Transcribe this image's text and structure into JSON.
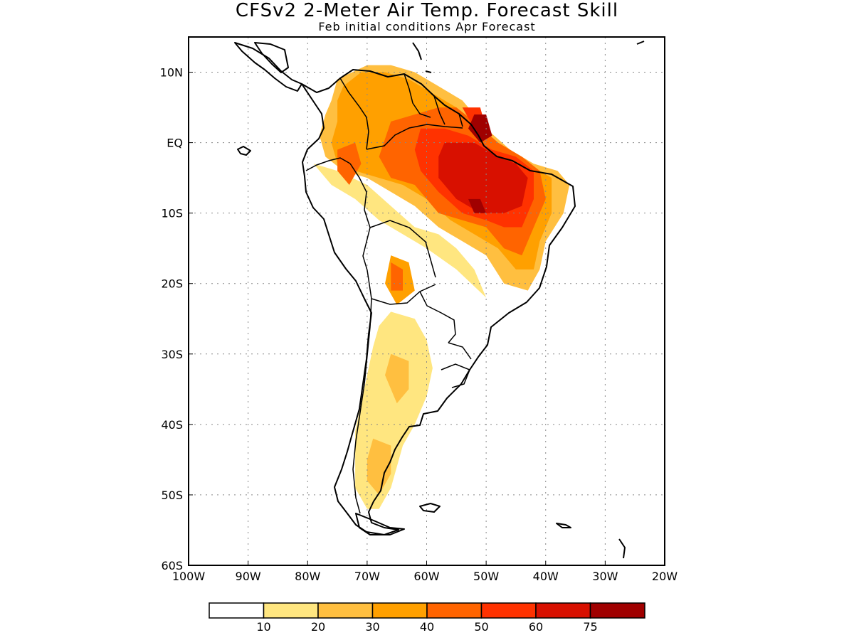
{
  "title": "CFSv2 2-Meter Air Temp. Forecast Skill",
  "subtitle": "Feb initial conditions  Apr Forecast",
  "map": {
    "lon_range": [
      -100,
      -20
    ],
    "lat_range": [
      -60,
      15
    ],
    "grid": true,
    "lon_ticks": [
      {
        "lon": -100,
        "label": "100W"
      },
      {
        "lon": -90,
        "label": "90W"
      },
      {
        "lon": -80,
        "label": "80W"
      },
      {
        "lon": -70,
        "label": "70W"
      },
      {
        "lon": -60,
        "label": "60W"
      },
      {
        "lon": -50,
        "label": "50W"
      },
      {
        "lon": -40,
        "label": "40W"
      },
      {
        "lon": -30,
        "label": "30W"
      },
      {
        "lon": -20,
        "label": "20W"
      }
    ],
    "lat_ticks": [
      {
        "lat": 10,
        "label": "10N"
      },
      {
        "lat": 0,
        "label": "EQ"
      },
      {
        "lat": -10,
        "label": "10S"
      },
      {
        "lat": -20,
        "label": "20S"
      },
      {
        "lat": -30,
        "label": "30S"
      },
      {
        "lat": -40,
        "label": "40S"
      },
      {
        "lat": -50,
        "label": "50S"
      },
      {
        "lat": -60,
        "label": "60S"
      }
    ]
  },
  "colorbar": {
    "bins": [
      {
        "color": "#ffffff"
      },
      {
        "color": "#ffe680"
      },
      {
        "color": "#ffbf40"
      },
      {
        "color": "#ffa000"
      },
      {
        "color": "#ff6400"
      },
      {
        "color": "#ff3200"
      },
      {
        "color": "#d81000"
      },
      {
        "color": "#a00000"
      }
    ],
    "labels": [
      "10",
      "20",
      "30",
      "40",
      "50",
      "60",
      "75"
    ]
  },
  "skill_regions": [
    {
      "level": 1,
      "points": [
        [
          -79,
          -3
        ],
        [
          -75,
          -4
        ],
        [
          -70,
          -6
        ],
        [
          -66,
          -9
        ],
        [
          -62,
          -12
        ],
        [
          -58,
          -13
        ],
        [
          -55,
          -15
        ],
        [
          -52,
          -18
        ],
        [
          -50,
          -22
        ],
        [
          -55,
          -18
        ],
        [
          -60,
          -15
        ],
        [
          -64,
          -13
        ],
        [
          -68,
          -11
        ],
        [
          -72,
          -8
        ],
        [
          -76,
          -6
        ]
      ]
    },
    {
      "level": 1,
      "points": [
        [
          -66,
          -24
        ],
        [
          -62,
          -25
        ],
        [
          -60,
          -28
        ],
        [
          -59,
          -32
        ],
        [
          -60,
          -36
        ],
        [
          -62,
          -40
        ],
        [
          -64,
          -43
        ],
        [
          -65,
          -46
        ],
        [
          -66,
          -49
        ],
        [
          -68,
          -52
        ],
        [
          -70,
          -52
        ],
        [
          -72,
          -49
        ],
        [
          -72,
          -45
        ],
        [
          -72,
          -41
        ],
        [
          -71,
          -37
        ],
        [
          -70,
          -33
        ],
        [
          -69,
          -29
        ],
        [
          -68,
          -26
        ]
      ]
    },
    {
      "level": 2,
      "points": [
        [
          -75,
          9
        ],
        [
          -70,
          11
        ],
        [
          -66,
          11
        ],
        [
          -62,
          10
        ],
        [
          -58,
          8
        ],
        [
          -54,
          6
        ],
        [
          -50,
          2
        ],
        [
          -46,
          -1
        ],
        [
          -42,
          -3
        ],
        [
          -38,
          -4
        ],
        [
          -36,
          -6
        ],
        [
          -37,
          -10
        ],
        [
          -40,
          -14
        ],
        [
          -41,
          -18
        ],
        [
          -43,
          -21
        ],
        [
          -47,
          -20
        ],
        [
          -50,
          -16
        ],
        [
          -54,
          -14
        ],
        [
          -58,
          -12
        ],
        [
          -62,
          -9
        ],
        [
          -66,
          -7
        ],
        [
          -70,
          -5
        ],
        [
          -74,
          -4
        ],
        [
          -77,
          -2
        ],
        [
          -78,
          1
        ],
        [
          -77,
          4
        ],
        [
          -76,
          6
        ]
      ]
    },
    {
      "level": 2,
      "points": [
        [
          -66,
          -30
        ],
        [
          -63,
          -31
        ],
        [
          -63,
          -35
        ],
        [
          -65,
          -37
        ],
        [
          -67,
          -33
        ]
      ]
    },
    {
      "level": 2,
      "points": [
        [
          -69,
          -42
        ],
        [
          -66,
          -43
        ],
        [
          -66,
          -47
        ],
        [
          -68,
          -50
        ],
        [
          -70,
          -48
        ],
        [
          -70,
          -45
        ]
      ]
    },
    {
      "level": 3,
      "points": [
        [
          -74,
          8
        ],
        [
          -71,
          10
        ],
        [
          -67,
          10
        ],
        [
          -63,
          9
        ],
        [
          -59,
          7
        ],
        [
          -55,
          5
        ],
        [
          -51,
          2
        ],
        [
          -47,
          -1
        ],
        [
          -43,
          -3
        ],
        [
          -39,
          -5
        ],
        [
          -39,
          -10
        ],
        [
          -41,
          -14
        ],
        [
          -42,
          -18
        ],
        [
          -45,
          -18
        ],
        [
          -48,
          -15
        ],
        [
          -52,
          -13
        ],
        [
          -56,
          -11
        ],
        [
          -60,
          -8
        ],
        [
          -64,
          -6
        ],
        [
          -68,
          -5
        ],
        [
          -72,
          -4
        ],
        [
          -75,
          -3
        ],
        [
          -76,
          0
        ],
        [
          -75,
          3
        ],
        [
          -75,
          6
        ]
      ]
    },
    {
      "level": 3,
      "points": [
        [
          -66,
          -16
        ],
        [
          -63,
          -17
        ],
        [
          -62,
          -21
        ],
        [
          -65,
          -23
        ],
        [
          -67,
          -20
        ]
      ]
    },
    {
      "level": 4,
      "points": [
        [
          -66,
          3
        ],
        [
          -62,
          4
        ],
        [
          -58,
          5
        ],
        [
          -55,
          5
        ],
        [
          -52,
          3
        ],
        [
          -48,
          0
        ],
        [
          -44,
          -2
        ],
        [
          -41,
          -4
        ],
        [
          -40,
          -8
        ],
        [
          -42,
          -12
        ],
        [
          -44,
          -16
        ],
        [
          -47,
          -15
        ],
        [
          -50,
          -12
        ],
        [
          -54,
          -11
        ],
        [
          -58,
          -10
        ],
        [
          -62,
          -6
        ],
        [
          -66,
          -5
        ],
        [
          -68,
          -2
        ]
      ]
    },
    {
      "level": 4,
      "points": [
        [
          -75,
          -1
        ],
        [
          -72,
          0
        ],
        [
          -71,
          -3
        ],
        [
          -73,
          -6
        ],
        [
          -75,
          -4
        ]
      ]
    },
    {
      "level": 4,
      "points": [
        [
          -66,
          -17
        ],
        [
          -64,
          -18
        ],
        [
          -64,
          -21
        ],
        [
          -66,
          -21
        ]
      ]
    },
    {
      "level": 5,
      "points": [
        [
          -61,
          2
        ],
        [
          -57,
          2
        ],
        [
          -53,
          1
        ],
        [
          -49,
          -1
        ],
        [
          -45,
          -2
        ],
        [
          -42,
          -4
        ],
        [
          -42,
          -8
        ],
        [
          -44,
          -12
        ],
        [
          -47,
          -12
        ],
        [
          -50,
          -11
        ],
        [
          -54,
          -10
        ],
        [
          -58,
          -7
        ],
        [
          -61,
          -4
        ],
        [
          -62,
          -1
        ]
      ]
    },
    {
      "level": 5,
      "points": [
        [
          -54,
          5
        ],
        [
          -51,
          5
        ],
        [
          -50,
          2
        ],
        [
          -52,
          2
        ]
      ]
    },
    {
      "level": 6,
      "points": [
        [
          -57,
          0
        ],
        [
          -52,
          0
        ],
        [
          -48,
          -2
        ],
        [
          -45,
          -3
        ],
        [
          -43,
          -5
        ],
        [
          -44,
          -9
        ],
        [
          -47,
          -10
        ],
        [
          -51,
          -10
        ],
        [
          -55,
          -8
        ],
        [
          -58,
          -5
        ],
        [
          -58,
          -2
        ]
      ]
    },
    {
      "level": 7,
      "points": [
        [
          -52,
          4
        ],
        [
          -50,
          4
        ],
        [
          -49,
          1
        ],
        [
          -51,
          0
        ],
        [
          -53,
          2
        ]
      ]
    },
    {
      "level": 7,
      "points": [
        [
          -53,
          -8
        ],
        [
          -51,
          -8
        ],
        [
          -50,
          -10
        ],
        [
          -52,
          -10
        ]
      ]
    }
  ]
}
